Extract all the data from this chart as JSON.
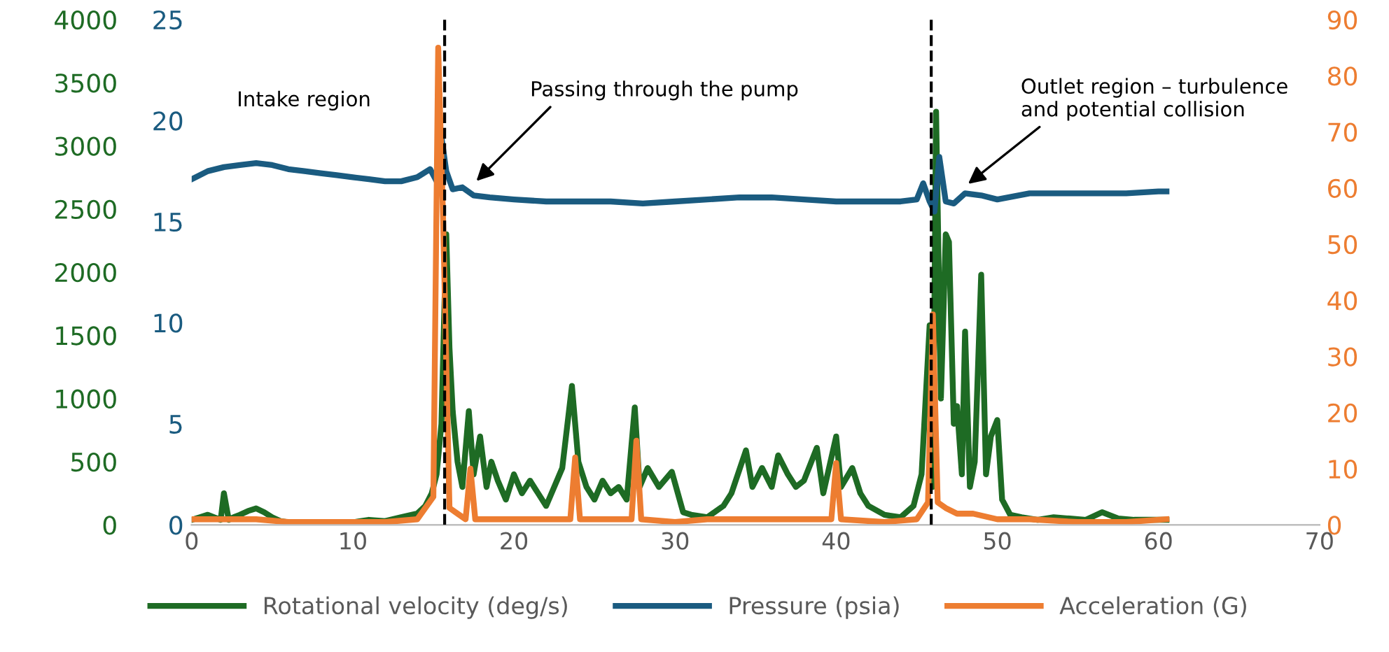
{
  "chart_data": {
    "type": "line",
    "xlim": [
      0,
      70
    ],
    "xticks": [
      0,
      10,
      20,
      30,
      40,
      50,
      60,
      70
    ],
    "ylim": [
      0,
      4000
    ],
    "yticks": [
      0,
      500,
      1000,
      1500,
      2000,
      2500,
      3000,
      3500,
      4000
    ],
    "y2lim": [
      0,
      25
    ],
    "y2ticks": [
      0,
      5,
      10,
      15,
      20,
      25
    ],
    "y3lim": [
      0,
      90
    ],
    "y3ticks": [
      0,
      10,
      20,
      30,
      40,
      50,
      60,
      70,
      80,
      90
    ],
    "grid": false,
    "legend": "bottom",
    "marker": "none",
    "line_style": "solid",
    "ref_lines": [
      {
        "axis": "x",
        "value": 15.7,
        "label": null,
        "color": "#000000",
        "line_style": "dashed"
      },
      {
        "axis": "x",
        "value": 45.9,
        "label": null,
        "color": "#000000",
        "line_style": "dashed"
      }
    ],
    "annotations": [
      "Intake region",
      {
        "text": "Passing through the pump",
        "x": 17.5,
        "y": 2700
      },
      {
        "text": "Outlet region – turbulence\nand potential collision",
        "x": 48,
        "y": 2680
      }
    ],
    "series": [
      {
        "name": "Rotational velocity (deg/s)",
        "color": "#1e6b24",
        "axis": "y",
        "x": [
          0,
          0.5,
          1,
          1.8,
          2.0,
          2.3,
          2.6,
          3,
          3.5,
          4,
          4.5,
          5,
          5.5,
          6,
          7,
          8,
          9,
          10,
          11,
          12,
          13,
          14,
          14.5,
          14.9,
          15.2,
          15.5,
          15.8,
          16.0,
          16.2,
          16.5,
          16.8,
          17.2,
          17.5,
          17.9,
          18.3,
          18.6,
          19.0,
          19.5,
          20,
          20.5,
          21,
          21.5,
          22,
          22.5,
          23,
          23.6,
          24.0,
          24.5,
          25,
          25.5,
          26,
          26.5,
          27,
          27.5,
          27.8,
          28.3,
          29,
          29.8,
          30.5,
          31,
          32,
          33,
          33.5,
          34.4,
          34.8,
          35.4,
          36,
          36.4,
          37,
          37.5,
          38,
          38.8,
          39.2,
          40.0,
          40.3,
          41,
          41.5,
          42,
          43,
          44,
          44.8,
          45.3,
          45.8,
          46.0,
          46.2,
          46.5,
          46.8,
          47.0,
          47.3,
          47.5,
          47.8,
          48.0,
          48.3,
          48.6,
          49.0,
          49.3,
          49.6,
          50.0,
          50.3,
          50.8,
          51.5,
          52.5,
          53.5,
          54.5,
          55.5,
          56.5,
          57.5,
          58.5,
          59.5,
          60.5
        ],
        "values": [
          40,
          60,
          80,
          40,
          250,
          40,
          60,
          80,
          110,
          130,
          100,
          60,
          30,
          20,
          20,
          10,
          20,
          20,
          40,
          30,
          60,
          90,
          150,
          250,
          400,
          800,
          2300,
          1400,
          900,
          500,
          300,
          900,
          400,
          700,
          300,
          500,
          350,
          200,
          400,
          250,
          350,
          250,
          150,
          300,
          450,
          1100,
          500,
          300,
          200,
          350,
          250,
          300,
          200,
          930,
          300,
          450,
          300,
          420,
          100,
          80,
          60,
          150,
          250,
          590,
          300,
          450,
          300,
          550,
          400,
          300,
          350,
          610,
          250,
          700,
          300,
          450,
          250,
          150,
          80,
          60,
          150,
          400,
          1580,
          300,
          3270,
          1000,
          2300,
          2240,
          800,
          940,
          400,
          1530,
          300,
          500,
          1980,
          400,
          700,
          830,
          200,
          80,
          60,
          40,
          60,
          50,
          40,
          100,
          50,
          40,
          40,
          40
        ]
      },
      {
        "name": "Pressure (psia)",
        "color": "#1a5b80",
        "axis": "y2",
        "x": [
          0,
          1,
          2,
          3,
          4,
          5,
          6,
          7,
          8,
          9,
          10,
          11,
          12,
          13,
          14,
          14.8,
          15.2,
          15.5,
          15.8,
          16.2,
          16.8,
          17.5,
          18.5,
          20,
          22,
          24,
          26,
          28,
          30,
          32,
          34,
          36,
          38,
          40,
          42,
          44,
          45.0,
          45.4,
          45.8,
          46.1,
          46.4,
          46.8,
          47.3,
          48,
          49,
          50,
          52,
          54,
          56,
          58,
          60,
          60.5
        ],
        "values": [
          17.1,
          17.5,
          17.7,
          17.8,
          17.9,
          17.8,
          17.6,
          17.5,
          17.4,
          17.3,
          17.2,
          17.1,
          17.0,
          17.0,
          17.2,
          17.6,
          17.0,
          19.2,
          17.5,
          16.6,
          16.7,
          16.3,
          16.2,
          16.1,
          16.0,
          16.0,
          16.0,
          15.9,
          16.0,
          16.1,
          16.2,
          16.2,
          16.1,
          16.0,
          16.0,
          16.0,
          16.1,
          16.9,
          16.0,
          15.5,
          18.2,
          16.0,
          15.9,
          16.4,
          16.3,
          16.1,
          16.4,
          16.4,
          16.4,
          16.4,
          16.5,
          16.5
        ]
      },
      {
        "name": "Acceleration (G)",
        "color": "#ed7d31",
        "axis": "y3",
        "x": [
          0,
          2,
          4,
          6,
          8,
          10,
          12,
          14,
          15.0,
          15.3,
          15.6,
          16.0,
          16.5,
          17.0,
          17.3,
          17.6,
          18.5,
          20,
          22,
          23.5,
          23.8,
          24.1,
          26,
          27.3,
          27.6,
          27.9,
          30,
          32,
          35,
          39.7,
          40.0,
          40.3,
          43,
          45,
          45.7,
          46.0,
          46.3,
          46.8,
          47.5,
          48.5,
          50,
          52,
          55,
          58,
          60.5
        ],
        "values": [
          1,
          1,
          1,
          0.5,
          0.5,
          0.5,
          0.5,
          1,
          5,
          85,
          55,
          3,
          2,
          1,
          10,
          1,
          1,
          1,
          1,
          1,
          12,
          1,
          1,
          1,
          15,
          1,
          0.5,
          1,
          1,
          1,
          11,
          1,
          0.5,
          1,
          4,
          37.5,
          4,
          3,
          2,
          2,
          1,
          1,
          0.5,
          0.5,
          1
        ]
      }
    ]
  }
}
